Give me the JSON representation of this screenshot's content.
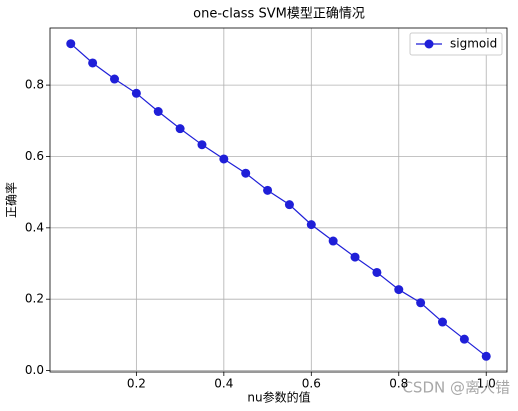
{
  "chart_data": {
    "type": "line",
    "title": "one-class SVM模型正确情况",
    "x_label": "nu参数的值",
    "y_label": "正确率",
    "x": [
      0.05,
      0.1,
      0.15,
      0.2,
      0.25,
      0.3,
      0.35,
      0.4,
      0.45,
      0.5,
      0.55,
      0.6,
      0.65,
      0.7,
      0.75,
      0.8,
      0.85,
      0.9,
      0.95,
      1.0
    ],
    "series": [
      {
        "name": "sigmoid",
        "color": "#1f1fd8",
        "values": [
          0.916,
          0.862,
          0.817,
          0.777,
          0.726,
          0.678,
          0.633,
          0.593,
          0.553,
          0.505,
          0.465,
          0.409,
          0.363,
          0.318,
          0.275,
          0.227,
          0.19,
          0.136,
          0.088,
          0.04
        ]
      }
    ],
    "xlim": [
      0.0025,
      1.0475
    ],
    "ylim": [
      -0.004,
      0.96
    ],
    "xticks": [
      0.2,
      0.4,
      0.6,
      0.8,
      {
        "value": 1,
        "label": "1.0"
      }
    ],
    "yticks": [
      {
        "value": 0,
        "label": "0.0"
      },
      0.2,
      0.4,
      0.6,
      0.8
    ],
    "grid": true,
    "legend": "upper right",
    "watermark": "CSDN @离人错"
  }
}
